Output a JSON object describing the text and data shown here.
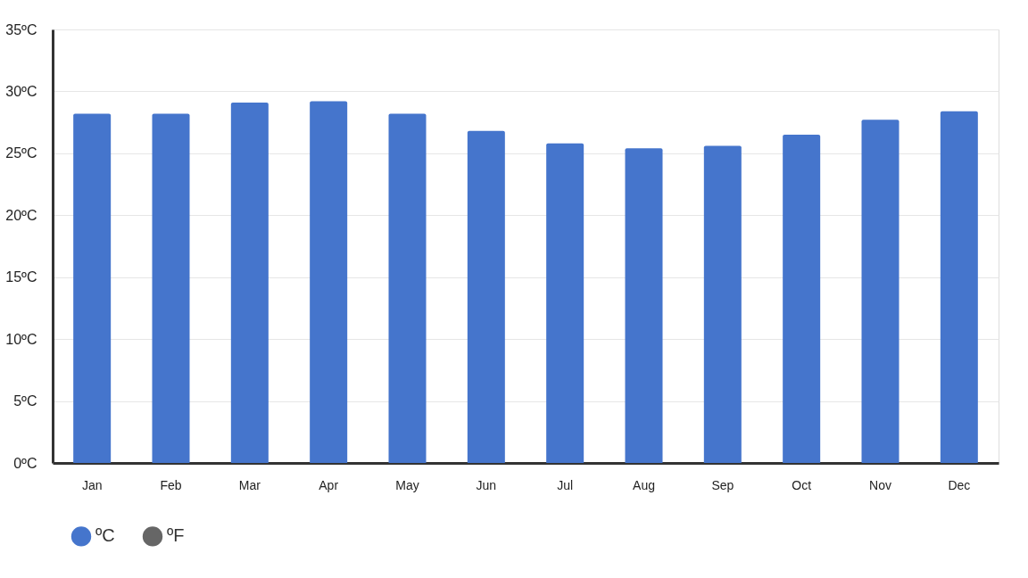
{
  "chart_data": {
    "type": "bar",
    "categories": [
      "Jan",
      "Feb",
      "Mar",
      "Apr",
      "May",
      "Jun",
      "Jul",
      "Aug",
      "Sep",
      "Oct",
      "Nov",
      "Dec"
    ],
    "series": [
      {
        "name": "ºC",
        "color": "#4575cc",
        "values": [
          28.2,
          28.2,
          29.1,
          29.2,
          28.2,
          26.8,
          25.8,
          25.4,
          25.6,
          26.5,
          27.7,
          28.4
        ]
      },
      {
        "name": "ºF",
        "color": "#666666",
        "values": [
          null,
          null,
          null,
          null,
          null,
          null,
          null,
          null,
          null,
          null,
          null,
          null
        ]
      }
    ],
    "ylim": [
      0,
      35
    ],
    "yticks": [
      {
        "value": 0,
        "label": "0ºC"
      },
      {
        "value": 5,
        "label": "5ºC"
      },
      {
        "value": 10,
        "label": "10ºC"
      },
      {
        "value": 15,
        "label": "15ºC"
      },
      {
        "value": 20,
        "label": "20ºC"
      },
      {
        "value": 25,
        "label": "25ºC"
      },
      {
        "value": 30,
        "label": "30ºC"
      },
      {
        "value": 35,
        "label": "35ºC"
      }
    ],
    "grid": "y",
    "legend": "bottom"
  }
}
